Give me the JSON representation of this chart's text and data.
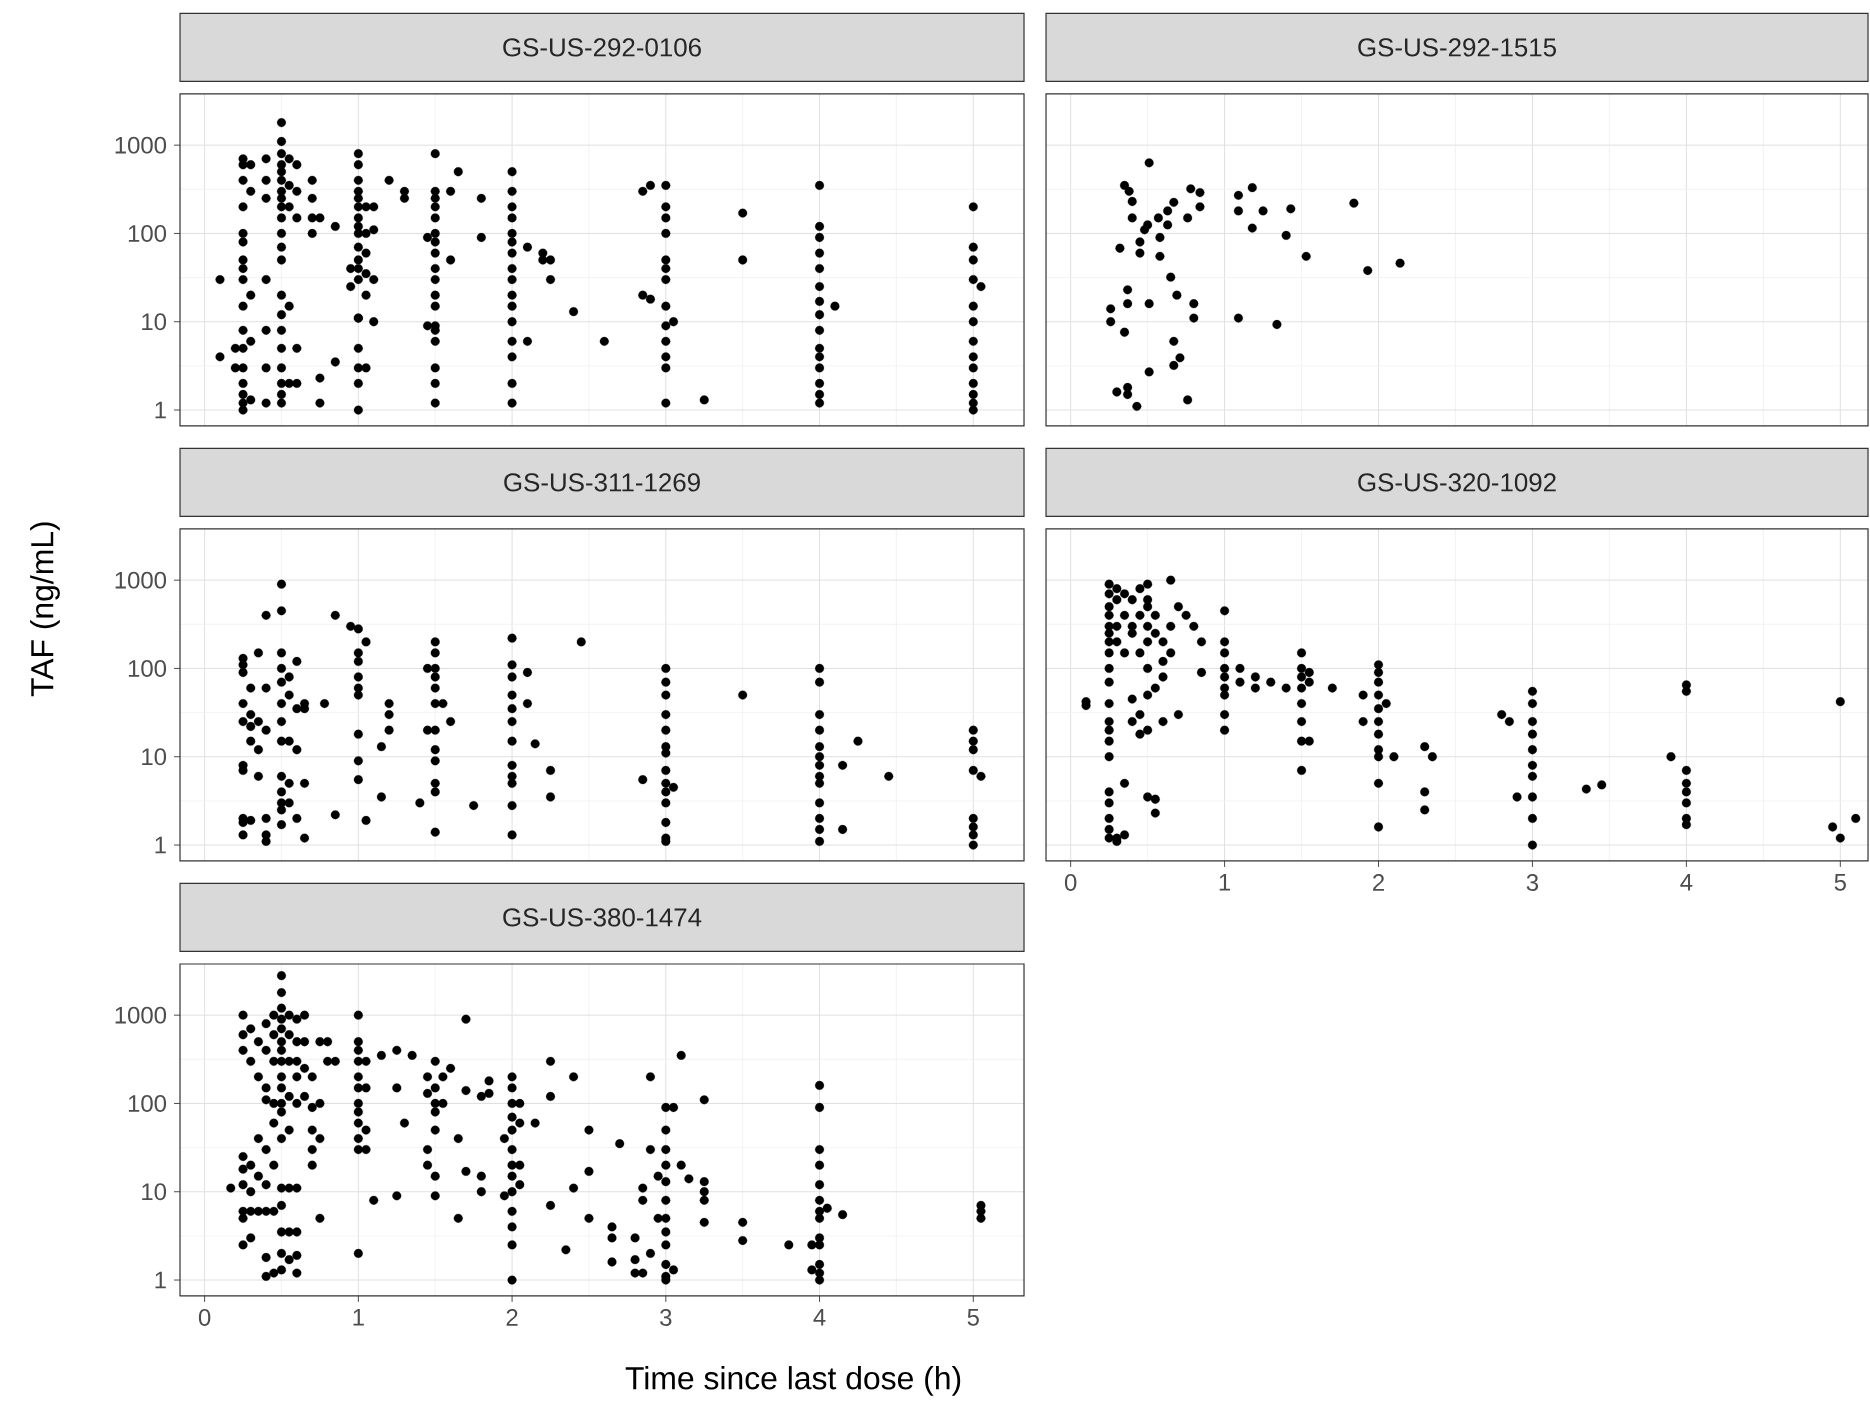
{
  "chart_data": [
    {
      "type": "scatter",
      "title": "GS-US-292-0106",
      "color": "#000000",
      "marker": "circle",
      "log": "y",
      "grid": true,
      "tick_labels": "y",
      "xlim": [
        -0.16,
        5.33
      ],
      "ylim": [
        0.66,
        3800
      ],
      "xticks": [
        0,
        1,
        2,
        3,
        4,
        5
      ],
      "yticks": [
        1,
        10,
        100,
        1000
      ],
      "x": [
        0.1,
        0.1,
        0.2,
        0.2,
        0.25,
        0.25,
        0.25,
        0.25,
        0.25,
        0.25,
        0.25,
        0.25,
        0.25,
        0.25,
        0.25,
        0.25,
        0.25,
        0.25,
        0.25,
        0.25,
        0.25,
        0.3,
        0.3,
        0.3,
        0.3,
        0.3,
        0.4,
        0.4,
        0.4,
        0.4,
        0.4,
        0.4,
        0.4,
        0.5,
        0.5,
        0.5,
        0.5,
        0.5,
        0.5,
        0.5,
        0.5,
        0.5,
        0.5,
        0.5,
        0.5,
        0.5,
        0.5,
        0.5,
        0.5,
        0.5,
        0.5,
        0.5,
        0.5,
        0.5,
        0.55,
        0.55,
        0.55,
        0.55,
        0.55,
        0.6,
        0.6,
        0.6,
        0.6,
        0.6,
        0.7,
        0.7,
        0.7,
        0.7,
        0.75,
        0.75,
        0.75,
        0.85,
        0.85,
        0.95,
        0.95,
        1,
        1,
        1,
        1,
        1,
        1,
        1,
        1,
        1,
        1,
        1,
        1,
        1,
        1,
        1,
        1,
        1,
        1,
        1,
        1.05,
        1.05,
        1.05,
        1.05,
        1.05,
        1.05,
        1.1,
        1.1,
        1.1,
        1.1,
        1.2,
        1.3,
        1.3,
        1.45,
        1.45,
        1.5,
        1.5,
        1.5,
        1.5,
        1.5,
        1.5,
        1.5,
        1.5,
        1.5,
        1.5,
        1.5,
        1.5,
        1.5,
        1.5,
        1.5,
        1.5,
        1.5,
        1.5,
        1.6,
        1.6,
        1.65,
        1.8,
        1.8,
        2,
        2,
        2,
        2,
        2,
        2,
        2,
        2,
        2,
        2,
        2,
        2,
        2,
        2,
        2,
        2,
        2.1,
        2.1,
        2.2,
        2.2,
        2.25,
        2.25,
        2.4,
        2.6,
        2.85,
        2.85,
        2.9,
        2.9,
        3,
        3,
        3,
        3,
        3,
        3,
        3,
        3,
        3,
        3,
        3,
        3,
        3,
        3.05,
        3.25,
        3.5,
        3.5,
        4,
        4,
        4,
        4,
        4,
        4,
        4,
        4,
        4,
        4,
        4,
        4,
        4,
        4,
        4,
        4.1,
        5,
        5,
        5,
        5,
        5,
        5,
        5,
        5,
        5,
        5,
        5,
        5,
        5,
        5.05
      ],
      "values": [
        30,
        4,
        5,
        3,
        600,
        700,
        400,
        200,
        100,
        80,
        50,
        40,
        30,
        15,
        8,
        5,
        3,
        2,
        1.5,
        1.2,
        1,
        600,
        300,
        20,
        6,
        1.3,
        700,
        400,
        250,
        30,
        8,
        3,
        1.2,
        1800,
        1100,
        800,
        600,
        500,
        400,
        300,
        250,
        200,
        150,
        100,
        70,
        50,
        20,
        12,
        8,
        5,
        3,
        2,
        1.5,
        1.2,
        700,
        350,
        200,
        15,
        2,
        600,
        300,
        150,
        5,
        2,
        400,
        250,
        150,
        100,
        150,
        2.3,
        1.2,
        120,
        3.5,
        40,
        25,
        800,
        600,
        400,
        300,
        250,
        200,
        150,
        120,
        100,
        70,
        50,
        40,
        30,
        11,
        11,
        5,
        3,
        2,
        1,
        200,
        100,
        60,
        35,
        20,
        3,
        200,
        110,
        30,
        10,
        400,
        300,
        250,
        90,
        9,
        800,
        300,
        250,
        200,
        150,
        100,
        80,
        60,
        40,
        30,
        20,
        15,
        9,
        8,
        6,
        3,
        2,
        1.2,
        300,
        50,
        500,
        250,
        90,
        500,
        300,
        200,
        150,
        100,
        80,
        60,
        40,
        30,
        20,
        15,
        10,
        6,
        4,
        2,
        1.2,
        70,
        6,
        60,
        50,
        50,
        30,
        13,
        6,
        300,
        20,
        350,
        18,
        350,
        200,
        150,
        100,
        50,
        40,
        30,
        15,
        9,
        6,
        4,
        3,
        1.2,
        10,
        1.3,
        170,
        50,
        350,
        120,
        90,
        60,
        40,
        25,
        17,
        12,
        8,
        5,
        4,
        3,
        2,
        1.5,
        1.2,
        15,
        200,
        70,
        50,
        30,
        15,
        10,
        6,
        4,
        3,
        2,
        1.5,
        1.2,
        1,
        25
      ]
    },
    {
      "type": "scatter",
      "title": "GS-US-292-1515",
      "color": "#000000",
      "marker": "circle",
      "log": "y",
      "grid": true,
      "tick_labels": false,
      "xlim": [
        -0.16,
        5.18
      ],
      "ylim": [
        0.66,
        3800
      ],
      "xticks": [
        0,
        1,
        2,
        3,
        4,
        5
      ],
      "yticks": [
        1,
        10,
        100,
        1000
      ],
      "x": [
        0.51,
        0.35,
        0.38,
        0.4,
        0.4,
        0.48,
        0.32,
        0.58,
        0.58,
        0.65,
        0.37,
        0.37,
        0.26,
        0.26,
        0.35,
        0.51,
        0.69,
        0.8,
        0.8,
        0.67,
        0.71,
        0.67,
        0.51,
        0.37,
        0.37,
        0.3,
        0.43,
        0.76,
        0.78,
        0.84,
        0.84,
        0.76,
        0.67,
        0.63,
        0.63,
        0.5,
        0.57,
        1.09,
        1.09,
        1.18,
        1.18,
        1.25,
        1.43,
        1.4,
        1.53,
        1.84,
        1.93,
        2.14,
        1.09,
        1.34,
        0.45,
        0.45
      ],
      "values": [
        630,
        350,
        300,
        230,
        150,
        110,
        68,
        90,
        55,
        32,
        23,
        16,
        14,
        10,
        7.6,
        16,
        20,
        16,
        11,
        6,
        3.9,
        3.2,
        2.7,
        1.8,
        1.5,
        1.6,
        1.1,
        1.3,
        320,
        290,
        200,
        150,
        225,
        180,
        125,
        125,
        150,
        270,
        180,
        330,
        115,
        180,
        190,
        95,
        55,
        220,
        38,
        46,
        11,
        9.3,
        80,
        60
      ]
    },
    {
      "type": "scatter",
      "title": "GS-US-311-1269",
      "ylabel": "TAF (ng/mL)",
      "color": "#000000",
      "marker": "circle",
      "log": "y",
      "grid": true,
      "tick_labels": "y",
      "xlim": [
        -0.16,
        5.33
      ],
      "ylim": [
        0.66,
        3800
      ],
      "xticks": [
        0,
        1,
        2,
        3,
        4,
        5
      ],
      "yticks": [
        1,
        10,
        100,
        1000
      ],
      "x": [
        0.25,
        0.25,
        0.25,
        0.25,
        0.25,
        0.25,
        0.25,
        0.25,
        0.25,
        0.25,
        0.3,
        0.3,
        0.3,
        0.3,
        0.3,
        0.35,
        0.35,
        0.35,
        0.35,
        0.4,
        0.4,
        0.4,
        0.4,
        0.4,
        0.4,
        0.5,
        0.5,
        0.5,
        0.5,
        0.5,
        0.5,
        0.5,
        0.5,
        0.5,
        0.5,
        0.5,
        0.5,
        0.5,
        0.55,
        0.55,
        0.55,
        0.55,
        0.55,
        0.6,
        0.6,
        0.6,
        0.6,
        0.65,
        0.65,
        0.65,
        0.65,
        0.78,
        0.85,
        0.85,
        0.95,
        1,
        1,
        1,
        1,
        1,
        1,
        1,
        1,
        1,
        1.05,
        1.05,
        1.15,
        1.15,
        1.2,
        1.2,
        1.2,
        1.4,
        1.45,
        1.45,
        1.5,
        1.5,
        1.5,
        1.5,
        1.5,
        1.5,
        1.5,
        1.5,
        1.5,
        1.5,
        1.5,
        1.5,
        1.55,
        1.6,
        1.75,
        2,
        2,
        2,
        2,
        2,
        2,
        2,
        2,
        2,
        2,
        2,
        2,
        2.1,
        2.1,
        2.15,
        2.25,
        2.25,
        2.45,
        2.85,
        3,
        3,
        3,
        3,
        3,
        3,
        3,
        3,
        3,
        3,
        3,
        3,
        3,
        3,
        3.05,
        3.5,
        4,
        4,
        4,
        4,
        4,
        4,
        4,
        4,
        4,
        4,
        4,
        4,
        4,
        4.15,
        4.15,
        4.25,
        4.45,
        5,
        5,
        5,
        5,
        5,
        5,
        5,
        5,
        5.05
      ],
      "values": [
        130,
        110,
        90,
        40,
        25,
        8,
        7,
        2,
        1.8,
        1.3,
        60,
        30,
        22,
        15,
        1.9,
        150,
        25,
        12,
        6,
        400,
        60,
        20,
        2,
        1.3,
        1.1,
        900,
        450,
        150,
        100,
        70,
        40,
        25,
        15,
        6,
        4,
        3,
        2.5,
        1.7,
        80,
        50,
        15,
        5,
        3,
        120,
        35,
        12,
        2,
        40,
        35,
        5,
        1.2,
        40,
        400,
        2.2,
        300,
        280,
        150,
        120,
        80,
        60,
        50,
        18,
        9,
        5.5,
        200,
        1.9,
        13,
        3.5,
        20,
        40,
        30,
        3,
        100,
        20,
        200,
        150,
        100,
        80,
        60,
        40,
        20,
        12,
        9,
        5,
        4,
        1.4,
        40,
        25,
        2.8,
        220,
        110,
        80,
        50,
        35,
        25,
        15,
        8,
        6,
        5,
        2.8,
        1.3,
        40,
        90,
        14,
        7,
        3.5,
        200,
        5.5,
        100,
        70,
        50,
        30,
        20,
        13,
        11,
        7,
        5,
        4,
        3,
        1.8,
        1.2,
        1.1,
        4.5,
        50,
        100,
        70,
        30,
        20,
        13,
        10,
        8,
        6,
        5,
        3,
        2,
        1.5,
        1.1,
        8,
        1.5,
        15,
        6,
        20,
        15,
        12,
        7,
        2,
        1.6,
        1.3,
        1,
        6
      ]
    },
    {
      "type": "scatter",
      "title": "GS-US-320-1092",
      "color": "#000000",
      "marker": "circle",
      "log": "y",
      "grid": true,
      "tick_labels": "x",
      "xlim": [
        -0.16,
        5.18
      ],
      "ylim": [
        0.66,
        3800
      ],
      "xticks": [
        0,
        1,
        2,
        3,
        4,
        5
      ],
      "yticks": [
        1,
        10,
        100,
        1000
      ],
      "x": [
        0.1,
        0.1,
        0.25,
        0.25,
        0.25,
        0.25,
        0.25,
        0.25,
        0.25,
        0.25,
        0.25,
        0.25,
        0.25,
        0.25,
        0.25,
        0.25,
        0.25,
        0.25,
        0.25,
        0.25,
        0.25,
        0.25,
        0.3,
        0.3,
        0.3,
        0.3,
        0.3,
        0.3,
        0.35,
        0.35,
        0.35,
        0.35,
        0.35,
        0.4,
        0.4,
        0.4,
        0.4,
        0.4,
        0.45,
        0.45,
        0.45,
        0.45,
        0.45,
        0.5,
        0.5,
        0.5,
        0.5,
        0.5,
        0.5,
        0.5,
        0.5,
        0.5,
        0.55,
        0.55,
        0.55,
        0.55,
        0.55,
        0.6,
        0.6,
        0.6,
        0.6,
        0.65,
        0.65,
        0.65,
        0.7,
        0.7,
        0.75,
        0.8,
        0.85,
        0.85,
        1,
        1,
        1,
        1,
        1,
        1,
        1,
        1,
        1,
        1.1,
        1.1,
        1.2,
        1.2,
        1.3,
        1.4,
        1.5,
        1.5,
        1.5,
        1.5,
        1.5,
        1.5,
        1.5,
        1.5,
        1.55,
        1.55,
        1.55,
        1.7,
        1.9,
        1.9,
        2,
        2,
        2,
        2,
        2,
        2,
        2,
        2,
        2,
        2,
        2,
        2.05,
        2.1,
        2.3,
        2.3,
        2.3,
        2.35,
        2.8,
        2.85,
        2.9,
        3,
        3,
        3,
        3,
        3,
        3,
        3,
        3,
        3,
        3,
        3.35,
        3.45,
        3.9,
        4,
        4,
        4,
        4,
        4,
        4,
        4,
        4,
        4.95,
        5,
        5,
        5.1
      ],
      "values": [
        42,
        38,
        900,
        700,
        500,
        400,
        300,
        250,
        200,
        150,
        100,
        70,
        40,
        25,
        20,
        15,
        10,
        4,
        3,
        2,
        1.5,
        1.2,
        800,
        600,
        300,
        200,
        1.2,
        1.1,
        700,
        400,
        150,
        5,
        1.3,
        600,
        300,
        250,
        45,
        25,
        800,
        400,
        150,
        30,
        18,
        900,
        600,
        500,
        300,
        200,
        100,
        50,
        20,
        3.5,
        400,
        250,
        60,
        2.3,
        3.3,
        200,
        120,
        80,
        25,
        1000,
        300,
        150,
        500,
        30,
        400,
        300,
        200,
        90,
        450,
        200,
        150,
        100,
        80,
        60,
        50,
        30,
        20,
        100,
        70,
        80,
        60,
        70,
        60,
        150,
        100,
        80,
        60,
        40,
        25,
        15,
        7,
        90,
        70,
        15,
        60,
        50,
        25,
        110,
        90,
        70,
        50,
        35,
        25,
        18,
        12,
        10,
        5,
        1.6,
        40,
        10,
        13,
        4,
        2.5,
        10,
        30,
        25,
        3.5,
        55,
        40,
        25,
        18,
        12,
        8,
        6,
        3.5,
        2,
        1,
        4.3,
        4.8,
        10,
        65,
        55,
        7,
        5,
        4,
        3,
        2,
        1.7,
        1.6,
        42,
        1.2,
        2
      ]
    },
    {
      "type": "scatter",
      "title": "GS-US-380-1474",
      "xlabel": "Time since last dose (h)",
      "color": "#000000",
      "marker": "circle",
      "log": "y",
      "grid": true,
      "xlim": [
        -0.16,
        5.33
      ],
      "ylim": [
        0.66,
        3800
      ],
      "xticks": [
        0,
        1,
        2,
        3,
        4,
        5
      ],
      "yticks": [
        1,
        10,
        100,
        1000
      ],
      "x": [
        0.17,
        0.25,
        0.25,
        0.25,
        0.25,
        0.25,
        0.25,
        0.25,
        0.25,
        0.25,
        0.3,
        0.3,
        0.3,
        0.3,
        0.3,
        0.3,
        0.35,
        0.35,
        0.35,
        0.35,
        0.35,
        0.4,
        0.4,
        0.4,
        0.4,
        0.4,
        0.4,
        0.4,
        0.4,
        0.4,
        0.45,
        0.45,
        0.45,
        0.45,
        0.45,
        0.45,
        0.45,
        0.45,
        0.5,
        0.5,
        0.5,
        0.5,
        0.5,
        0.5,
        0.5,
        0.5,
        0.5,
        0.5,
        0.5,
        0.5,
        0.5,
        0.5,
        0.5,
        0.5,
        0.5,
        0.5,
        0.55,
        0.55,
        0.55,
        0.55,
        0.55,
        0.55,
        0.55,
        0.55,
        0.6,
        0.6,
        0.6,
        0.6,
        0.6,
        0.6,
        0.6,
        0.6,
        0.6,
        0.65,
        0.65,
        0.65,
        0.65,
        0.7,
        0.7,
        0.7,
        0.7,
        0.7,
        0.75,
        0.75,
        0.75,
        0.75,
        0.8,
        0.8,
        0.85,
        1,
        1,
        1,
        1,
        1,
        1,
        1,
        1,
        1,
        1,
        1,
        1,
        1.05,
        1.05,
        1.05,
        1.05,
        1.1,
        1.15,
        1.25,
        1.25,
        1.25,
        1.3,
        1.35,
        1.45,
        1.45,
        1.45,
        1.45,
        1.5,
        1.5,
        1.5,
        1.5,
        1.5,
        1.5,
        1.5,
        1.55,
        1.55,
        1.6,
        1.65,
        1.65,
        1.7,
        1.7,
        1.7,
        1.8,
        1.8,
        1.8,
        1.85,
        1.85,
        1.95,
        1.95,
        2,
        2,
        2,
        2,
        2,
        2,
        2,
        2,
        2,
        2,
        2,
        2,
        2,
        2.05,
        2.05,
        2.05,
        2.05,
        2.15,
        2.25,
        2.25,
        2.25,
        2.35,
        2.4,
        2.4,
        2.5,
        2.5,
        2.5,
        2.65,
        2.65,
        2.65,
        2.7,
        2.8,
        2.8,
        2.8,
        2.85,
        2.85,
        2.85,
        2.9,
        2.9,
        2.9,
        2.95,
        2.95,
        3,
        3,
        3,
        3,
        3,
        3,
        3,
        3,
        3,
        3,
        3,
        3,
        3.05,
        3.05,
        3.1,
        3.1,
        3.15,
        3.25,
        3.25,
        3.25,
        3.25,
        3.25,
        3.5,
        3.5,
        3.8,
        3.95,
        3.95,
        4,
        4,
        4,
        4,
        4,
        4,
        4,
        4,
        4,
        4,
        4,
        4,
        4,
        4.05,
        4.15,
        5.05,
        5.05,
        5.05
      ],
      "values": [
        11,
        1000,
        600,
        400,
        25,
        18,
        12,
        6,
        5,
        2.5,
        700,
        300,
        20,
        10,
        6,
        3,
        500,
        200,
        40,
        15,
        6,
        800,
        400,
        150,
        110,
        30,
        12,
        6,
        1.8,
        1.1,
        1000,
        600,
        300,
        100,
        60,
        20,
        6,
        1.2,
        2800,
        1800,
        1200,
        900,
        700,
        500,
        400,
        300,
        200,
        150,
        100,
        80,
        40,
        11,
        7,
        3.5,
        2,
        1.3,
        1000,
        600,
        300,
        120,
        50,
        11,
        3.5,
        1.7,
        900,
        500,
        300,
        200,
        100,
        11,
        1.2,
        3.5,
        1.9,
        1000,
        500,
        250,
        120,
        200,
        90,
        50,
        30,
        20,
        500,
        100,
        40,
        5,
        500,
        300,
        300,
        1000,
        500,
        400,
        300,
        200,
        150,
        100,
        80,
        60,
        40,
        30,
        2,
        300,
        150,
        50,
        30,
        8,
        350,
        400,
        150,
        9,
        60,
        350,
        200,
        130,
        30,
        20,
        300,
        150,
        100,
        80,
        50,
        15,
        9,
        200,
        100,
        250,
        40,
        5,
        900,
        140,
        17,
        120,
        15,
        10,
        180,
        130,
        40,
        9,
        200,
        150,
        100,
        70,
        50,
        30,
        20,
        15,
        10,
        6,
        4,
        2.5,
        1,
        100,
        60,
        20,
        12,
        60,
        300,
        120,
        7,
        2.2,
        200,
        11,
        50,
        17,
        5,
        4,
        3,
        1.6,
        35,
        3,
        1.7,
        1.2,
        11,
        8,
        1.2,
        200,
        30,
        2,
        15,
        5,
        90,
        50,
        30,
        20,
        13,
        8,
        5,
        3.5,
        2.5,
        1.5,
        1.1,
        1,
        90,
        1.3,
        350,
        20,
        14,
        110,
        13,
        10,
        8,
        4.5,
        4.5,
        2.8,
        2.5,
        2.5,
        1.3,
        160,
        90,
        30,
        20,
        12,
        8,
        6,
        5,
        3,
        2.5,
        1.5,
        1.2,
        1,
        6.5,
        5.5,
        7,
        6,
        5
      ]
    }
  ]
}
